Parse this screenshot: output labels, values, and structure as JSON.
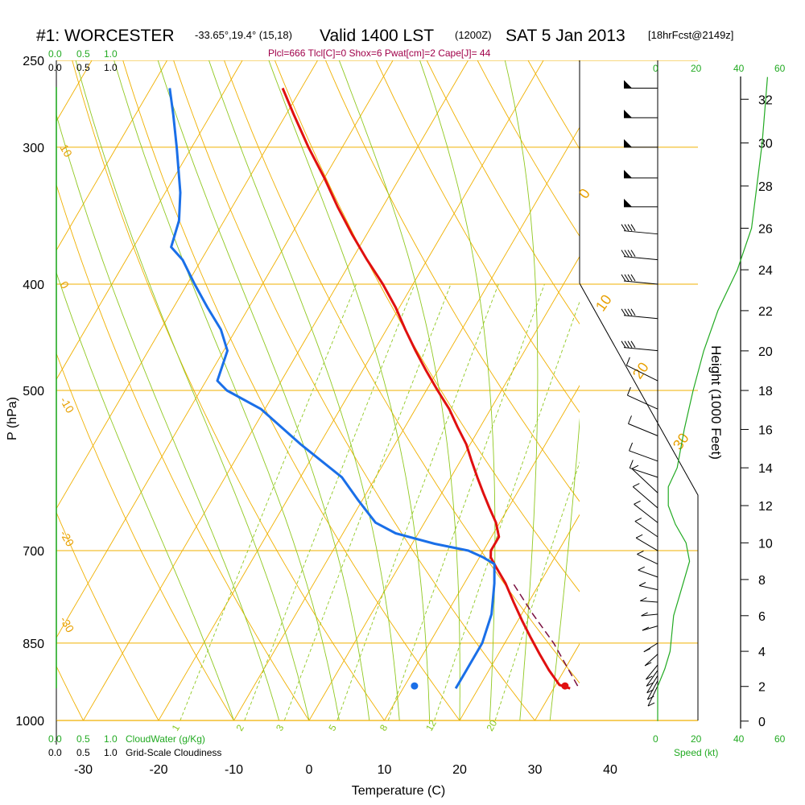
{
  "title": {
    "station": "#1: WORCESTER",
    "coords": "-33.65°,19.4° (15,18)",
    "valid": "Valid 1400 LST",
    "zulu": "(1200Z)",
    "date": "SAT 5 Jan 2013",
    "forecast": "[18hrFcst@2149z]"
  },
  "indices": "Plcl=666 Tlcl[C]=0 Shox=6 Pwat[cm]=2 Cape[J]= 44",
  "colors": {
    "isotherm": "#f0b000",
    "dry_adiabat": "#f0b000",
    "moist_adiabat": "#90c820",
    "mixing_ratio": "#90c820",
    "temperature": "#e01010",
    "dewpoint": "#1a6fe8",
    "parcel": "#7a1040",
    "green_text": "#22aa22",
    "indices_text": "#a0004a"
  },
  "chart_data": {
    "type": "skew-t",
    "xlabel": "Temperature (C)",
    "ylabel": "P (hPa)",
    "right_axis_label": "Height (1000 Feet)",
    "x_ticks": [
      "-30",
      "-20",
      "-10",
      "0",
      "10",
      "20",
      "30",
      "40"
    ],
    "x_tick_values": [
      -30,
      -20,
      -10,
      0,
      10,
      20,
      30,
      40
    ],
    "p_ticks": [
      "250",
      "300",
      "400",
      "500",
      "700",
      "850",
      "1000"
    ],
    "p_tick_values": [
      250,
      300,
      400,
      500,
      700,
      850,
      1000
    ],
    "height_ticks": [
      "32",
      "30",
      "28",
      "26",
      "24",
      "22",
      "20",
      "18",
      "16",
      "14",
      "12",
      "10",
      "8",
      "6",
      "4",
      "2",
      "0"
    ],
    "height_tick_values": [
      32,
      30,
      28,
      26,
      24,
      22,
      20,
      18,
      16,
      14,
      12,
      10,
      8,
      6,
      4,
      2,
      0
    ],
    "cloud_scale_top": {
      "green": [
        "0.0",
        "0.5",
        "1.0"
      ],
      "black": [
        "0.0",
        "0.5",
        "1.0"
      ]
    },
    "cloud_scale_bottom": {
      "green": [
        "0.0",
        "0.5",
        "1.0"
      ],
      "black": [
        "0.0",
        "0.5",
        "1.0"
      ],
      "green_label": "CloudWater (g/Kg)",
      "black_label": "Grid-Scale Cloudiness"
    },
    "speed_scale": {
      "top_black": "0",
      "top_green": [
        "20",
        "40",
        "60"
      ],
      "bottom_black": [
        "0",
        "20",
        "40",
        "60"
      ],
      "label": "Speed (kt)"
    },
    "isotherm_labels": [
      "10",
      "0",
      "-10",
      "-20",
      "-30"
    ],
    "dry_adiabat_labels": [
      "0",
      "10",
      "20",
      "30"
    ],
    "mixing_ratio_labels": [
      "1",
      "2",
      "3",
      "5",
      "8",
      "12",
      "20"
    ],
    "temperature": {
      "name": "Temperature",
      "p": [
        935,
        928,
        900,
        870,
        840,
        810,
        780,
        750,
        725,
        710,
        700,
        690,
        680,
        660,
        640,
        620,
        600,
        580,
        560,
        540,
        520,
        500,
        480,
        460,
        440,
        420,
        400,
        380,
        360,
        340,
        320,
        300,
        280,
        265
      ],
      "t": [
        32.2,
        30.5,
        28.0,
        25.5,
        23.0,
        20.5,
        18.0,
        15.5,
        13.0,
        11.5,
        11.0,
        11.0,
        11.0,
        9.5,
        7.5,
        5.5,
        3.5,
        1.5,
        -0.5,
        -3.0,
        -5.5,
        -8.5,
        -11.5,
        -14.5,
        -17.5,
        -20.5,
        -24.0,
        -28.0,
        -32.0,
        -36.0,
        -40.0,
        -44.5,
        -49.0,
        -52.5
      ]
    },
    "dewpoint": {
      "name": "Dewpoint",
      "p": [
        935,
        928,
        900,
        850,
        800,
        750,
        720,
        710,
        700,
        690,
        675,
        660,
        630,
        600,
        560,
        520,
        500,
        490,
        460,
        440,
        420,
        400,
        380,
        370,
        350,
        330,
        300,
        280,
        265
      ],
      "td": [
        17.0,
        17.0,
        17.0,
        17.0,
        16.0,
        14.0,
        12.5,
        10.5,
        8.0,
        3.0,
        -3.0,
        -6.5,
        -10.5,
        -14.5,
        -22.5,
        -30.5,
        -36.5,
        -38.5,
        -39.5,
        -42.0,
        -45.5,
        -49.0,
        -52.5,
        -55.0,
        -56.0,
        -58.0,
        -62.0,
        -65.0,
        -67.5
      ]
    },
    "parcel": {
      "name": "Parcel",
      "p": [
        930,
        850,
        800,
        750
      ],
      "t": [
        33.0,
        26.5,
        21.5,
        16.5
      ]
    },
    "surface_markers": {
      "temperature_c": 34,
      "dewpoint_c": 14,
      "p": 930
    },
    "wind_levels_p": [
      265,
      282,
      300,
      320,
      340,
      360,
      380,
      400,
      430,
      460,
      490,
      520,
      550,
      580,
      600,
      620,
      640,
      660,
      680,
      700,
      720,
      740,
      760,
      780,
      800,
      820,
      850,
      870,
      890,
      900,
      910,
      920,
      930
    ],
    "cloud_water_height_k_ft": [
      0,
      1,
      2,
      3,
      4,
      5,
      6,
      7,
      8,
      9,
      10,
      11,
      12,
      13,
      14,
      16,
      18,
      20,
      22,
      24,
      26,
      28,
      30,
      32,
      33
    ],
    "cloud_water_g_kg": [
      0,
      0,
      0,
      0.4,
      0.7,
      0.8,
      0.9,
      1.2,
      1.5,
      1.8,
      1.6,
      1.0,
      0.6,
      0.6,
      1.1,
      1.5,
      2.0,
      2.6,
      3.4,
      4.5,
      5.3,
      5.6,
      5.9,
      6.1,
      6.2
    ]
  }
}
